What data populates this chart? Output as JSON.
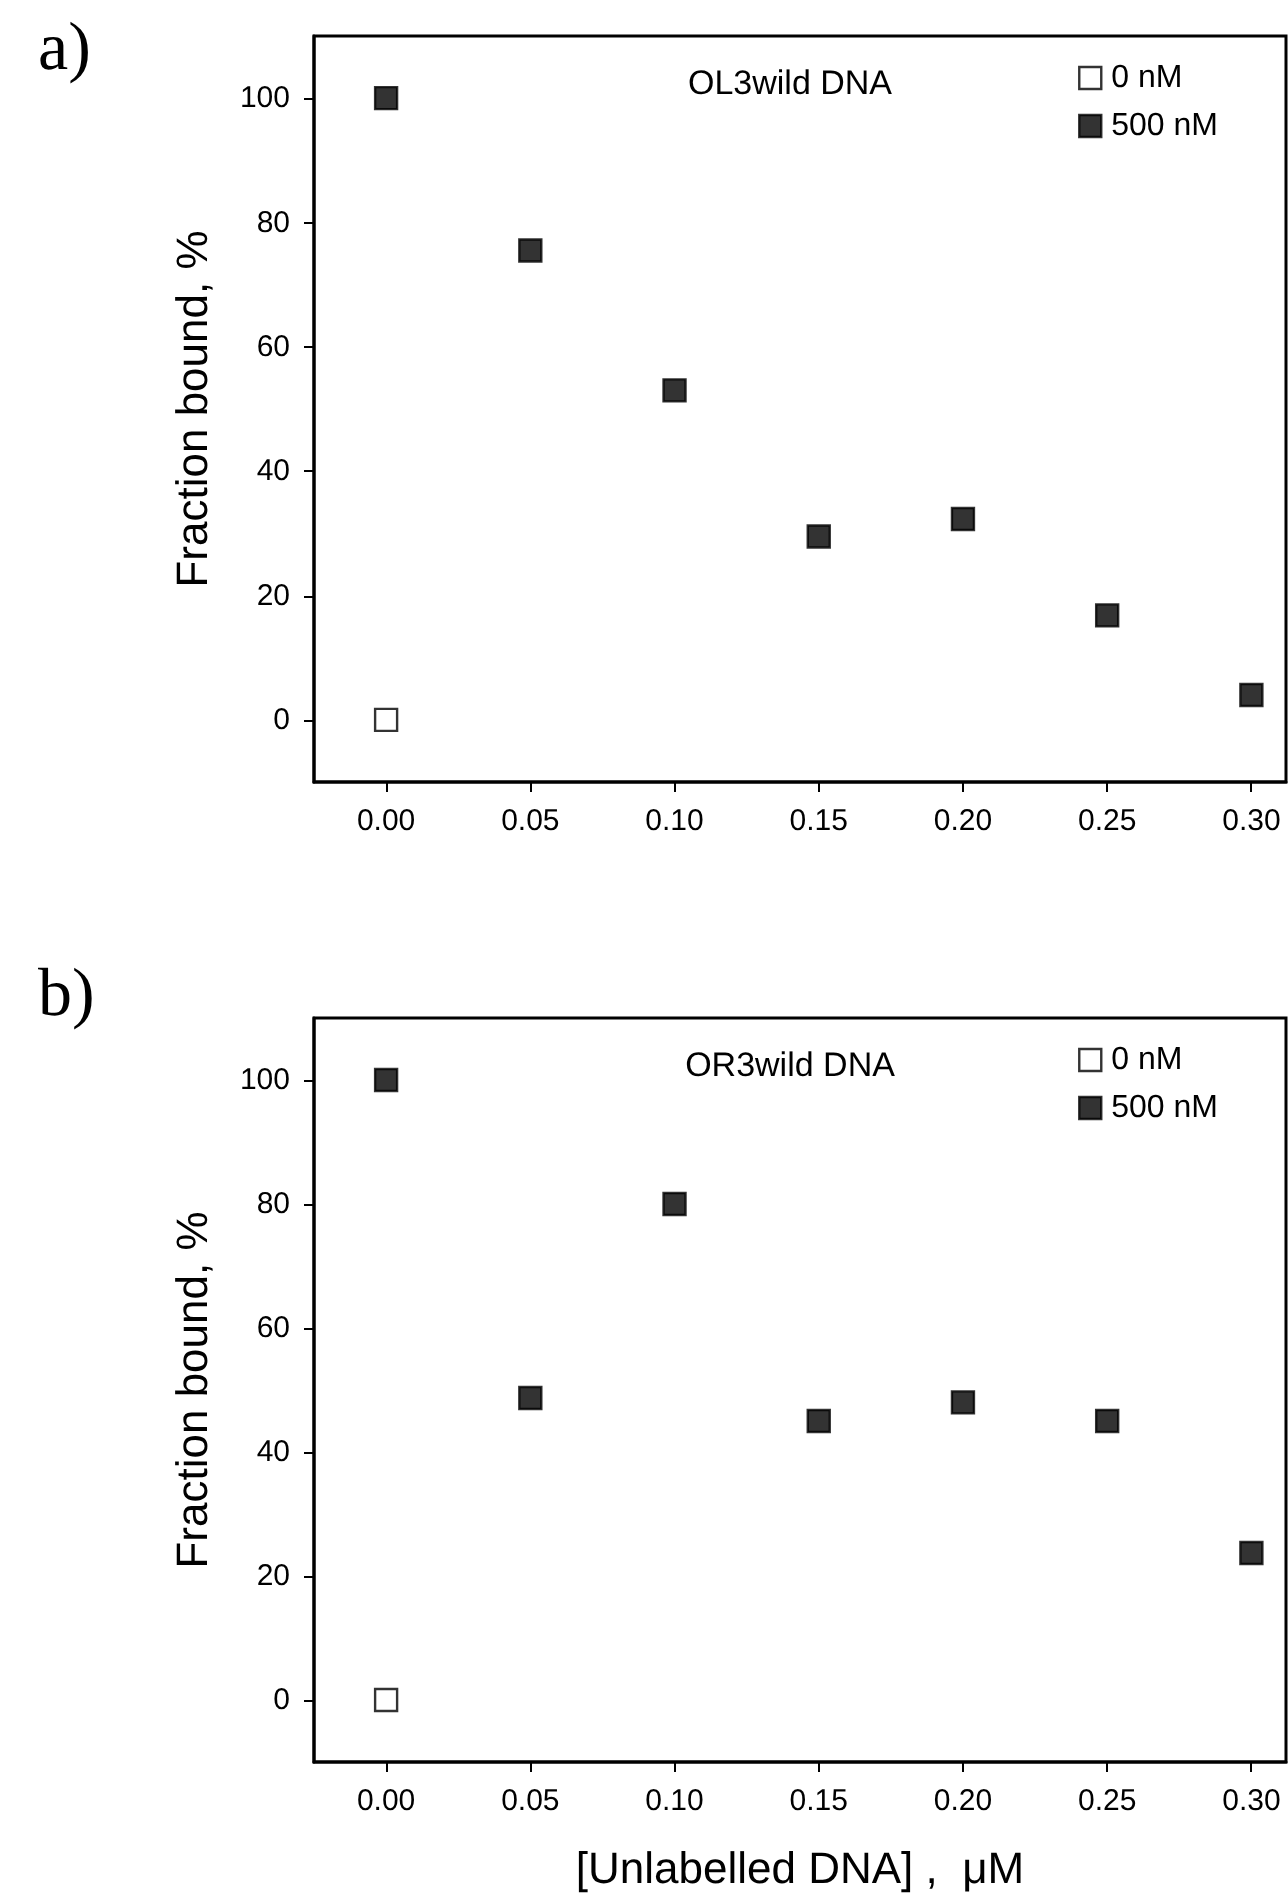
{
  "chart_data": [
    {
      "type": "scatter",
      "title": "OL3wild DNA",
      "ylabel": "Fraction bound, %",
      "annotations": [
        "a)"
      ],
      "x": [
        0,
        0.05,
        0.1,
        0.15,
        0.2,
        0.25,
        0.3
      ],
      "series": [
        {
          "name": "0 nM",
          "color": "#ffffff",
          "x": [
            0
          ],
          "values": [
            0
          ]
        },
        {
          "name": "500 nM",
          "color": "#000000",
          "values": [
            100,
            75.5,
            53,
            29.5,
            32.3,
            16.8,
            4
          ]
        }
      ],
      "xlim": [
        -0.025,
        0.312
      ],
      "xticks": [
        {
          "value": 0,
          "label": "0.00"
        },
        0.05,
        {
          "value": 0.1,
          "label": "0.10"
        },
        0.15,
        {
          "value": 0.2,
          "label": "0.20"
        },
        0.25,
        {
          "value": 0.3,
          "label": "0.30"
        }
      ],
      "ylim": [
        -10,
        110
      ],
      "yticks": [
        0,
        20,
        40,
        60,
        80,
        100
      ],
      "marker": "square",
      "legend": "top right",
      "grid": false
    },
    {
      "type": "scatter",
      "title": "OR3wild DNA",
      "xlabel": "[Unlabelled DNA] ,  μM",
      "ylabel": "Fraction bound, %",
      "annotations": [
        "b)"
      ],
      "x": [
        0,
        0.05,
        0.1,
        0.15,
        0.2,
        0.25,
        0.3
      ],
      "series": [
        {
          "name": "0 nM",
          "color": "#ffffff",
          "x": [
            0
          ],
          "values": [
            0
          ]
        },
        {
          "name": "500 nM",
          "color": "#000000",
          "values": [
            100,
            48.7,
            80,
            45,
            48,
            45,
            23.7
          ]
        }
      ],
      "xlim": [
        -0.025,
        0.312
      ],
      "xticks": [
        {
          "value": 0,
          "label": "0.00"
        },
        0.05,
        {
          "value": 0.1,
          "label": "0.10"
        },
        0.15,
        {
          "value": 0.2,
          "label": "0.20"
        },
        0.25,
        {
          "value": 0.3,
          "label": "0.30"
        }
      ],
      "ylim": [
        -10,
        110
      ],
      "yticks": [
        0,
        20,
        40,
        60,
        80,
        100
      ],
      "marker": "square",
      "legend": "top right",
      "grid": false
    }
  ]
}
